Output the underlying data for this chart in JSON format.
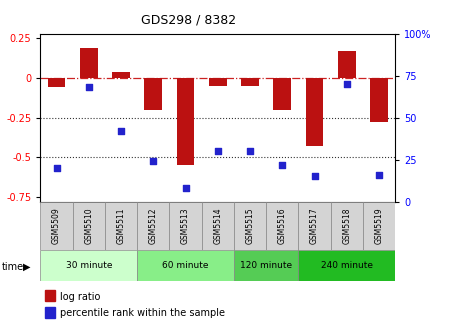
{
  "title": "GDS298 / 8382",
  "samples": [
    "GSM5509",
    "GSM5510",
    "GSM5511",
    "GSM5512",
    "GSM5513",
    "GSM5514",
    "GSM5515",
    "GSM5516",
    "GSM5517",
    "GSM5518",
    "GSM5519"
  ],
  "log_ratio": [
    -0.06,
    0.19,
    0.04,
    -0.2,
    -0.55,
    -0.05,
    -0.05,
    -0.2,
    -0.43,
    0.17,
    -0.28
  ],
  "percentile": [
    20,
    68,
    42,
    24,
    8,
    30,
    30,
    22,
    15,
    70,
    16
  ],
  "groups": [
    {
      "label": "30 minute",
      "start": 0,
      "end": 3,
      "color": "#ccffcc"
    },
    {
      "label": "60 minute",
      "start": 3,
      "end": 6,
      "color": "#88ee88"
    },
    {
      "label": "120 minute",
      "start": 6,
      "end": 8,
      "color": "#55cc55"
    },
    {
      "label": "240 minute",
      "start": 8,
      "end": 11,
      "color": "#22bb22"
    }
  ],
  "bar_color": "#bb1111",
  "dot_color": "#2222cc",
  "zero_line_color": "#cc2222",
  "dotted_line_color": "#333333",
  "ylim_left": [
    -0.78,
    0.28
  ],
  "ylim_right": [
    0,
    100
  ],
  "yticks_left": [
    0.25,
    0.0,
    -0.25,
    -0.5,
    -0.75
  ],
  "yticks_right": [
    0,
    25,
    50,
    75,
    100
  ],
  "legend_label_bar": "log ratio",
  "legend_label_dot": "percentile rank within the sample",
  "bar_width": 0.55,
  "bg_color": "#ffffff",
  "plot_bg": "#ffffff",
  "spine_color": "#aaaaaa"
}
